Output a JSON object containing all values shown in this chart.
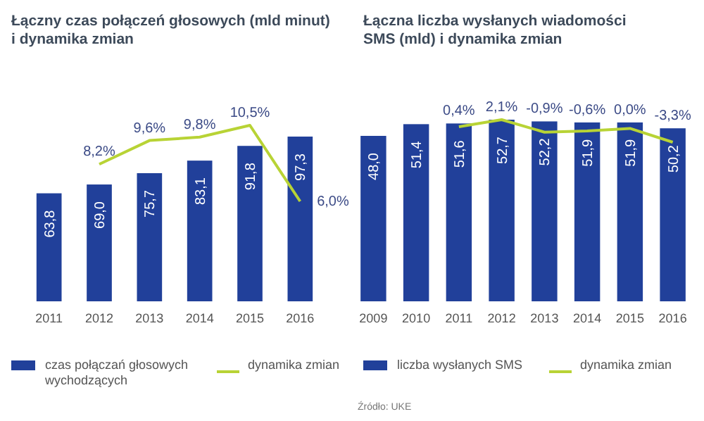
{
  "chart_data": [
    {
      "type": "bar",
      "title": "Łączny czas połączeń głosowych (mld minut)\ni dynamika zmian",
      "categories": [
        "2011",
        "2012",
        "2013",
        "2014",
        "2015",
        "2016"
      ],
      "tick_labels": "x",
      "legend": "bottom",
      "series": [
        {
          "name": "czas połączań głosowych wychodzących",
          "color": "#21409a",
          "values": [
            63.8,
            69.0,
            75.7,
            83.1,
            91.8,
            97.3
          ],
          "value_labels": [
            "63,8",
            "69,0",
            "75,7",
            "83,1",
            "91,8",
            "97,3"
          ]
        },
        {
          "name": "dynamika zmian",
          "type": "line",
          "axis": "y2",
          "color": "#b8d335",
          "values": [
            null,
            8.2,
            9.6,
            9.8,
            10.5,
            6.0
          ],
          "value_labels": [
            null,
            "8,2%",
            "9,6%",
            "9,8%",
            "10,5%",
            "6,0%"
          ]
        }
      ]
    },
    {
      "type": "bar",
      "title": "Łączna liczba wysłanych wiadomości\nSMS (mld) i dynamika zmian",
      "categories": [
        "2009",
        "2010",
        "2011",
        "2012",
        "2013",
        "2014",
        "2015",
        "2016"
      ],
      "tick_labels": "x",
      "legend": "bottom",
      "annotations": [
        "Źródło: UKE"
      ],
      "series": [
        {
          "name": "liczba wysłanych SMS",
          "color": "#21409a",
          "values": [
            48.0,
            51.4,
            51.6,
            52.7,
            52.2,
            51.9,
            51.9,
            50.2
          ],
          "value_labels": [
            "48,0",
            "51,4",
            "51,6",
            "52,7",
            "52,2",
            "51,9",
            "51,9",
            "50,2"
          ]
        },
        {
          "name": "dynamika zmian",
          "type": "line",
          "axis": "y2",
          "color": "#b8d335",
          "values": [
            null,
            null,
            0.4,
            2.1,
            -0.9,
            -0.6,
            0.0,
            -3.3
          ],
          "value_labels": [
            null,
            null,
            "0,4%",
            "2,1%",
            "-0,9%",
            "-0,6%",
            "0,0%",
            "-3,3%"
          ]
        }
      ]
    }
  ]
}
